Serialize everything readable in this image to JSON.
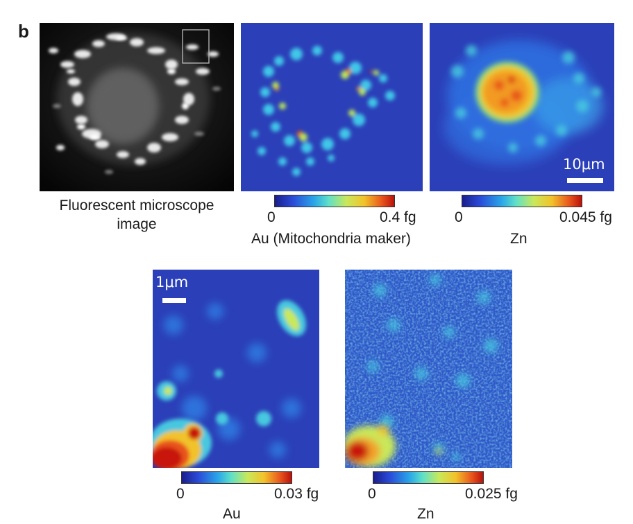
{
  "panel_letter": "b",
  "top_row": {
    "fluorescent": {
      "caption_line1": "Fluorescent microscope",
      "caption_line2": "image"
    },
    "au_map": {
      "cbar_min": "0",
      "cbar_max": "0.4 fg",
      "element_label": "Au (Mitochondria maker)"
    },
    "zn_map": {
      "cbar_min": "0",
      "cbar_max": "0.045 fg",
      "element_label": "Zn",
      "scale_bar_label": "10μm"
    }
  },
  "bottom_row": {
    "au_zoom": {
      "scale_bar_label": "1μm",
      "cbar_min": "0",
      "cbar_max": "0.03 fg",
      "element_label": "Au"
    },
    "zn_zoom": {
      "cbar_min": "0",
      "cbar_max": "0.025 fg",
      "element_label": "Zn"
    }
  },
  "colors": {
    "map_background": "#2b3fb8",
    "scale_bar": "#ffffff"
  }
}
